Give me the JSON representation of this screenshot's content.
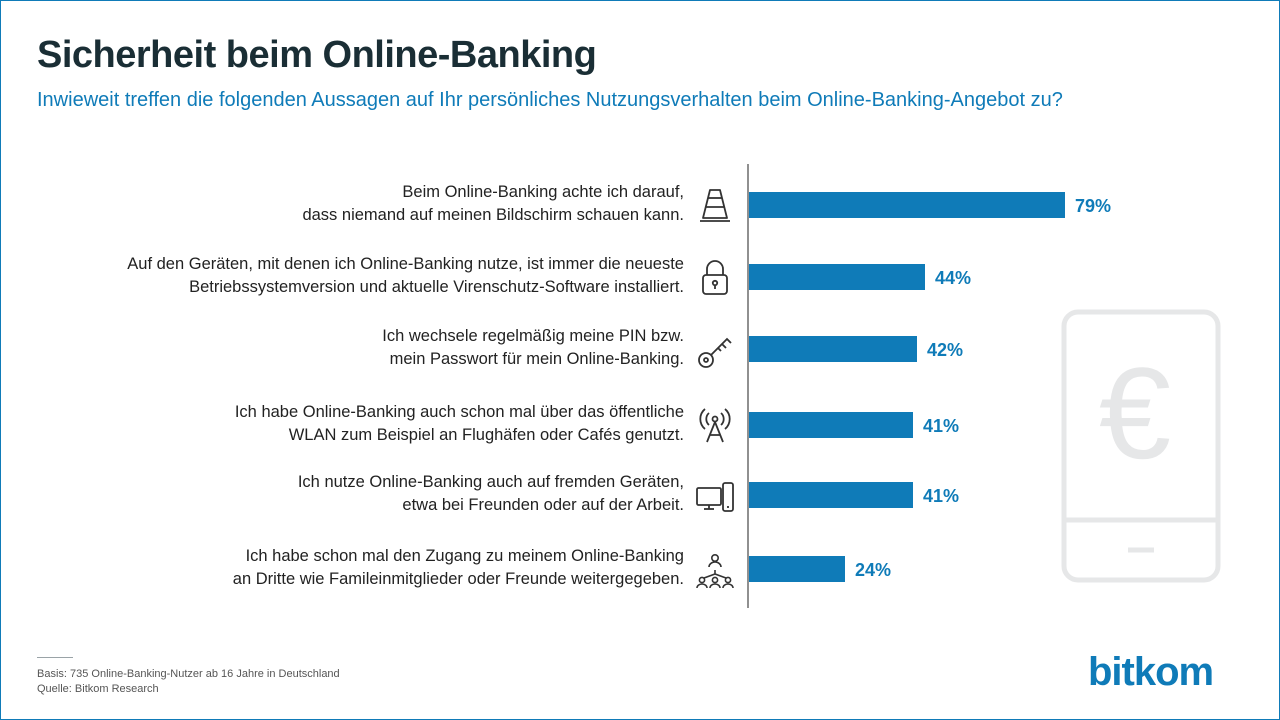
{
  "title": "Sicherheit beim Online-Banking",
  "subtitle": "Inwieweit treffen die folgenden Aussagen auf Ihr persönliches Nutzungsverhalten beim Online-Banking-Angebot zu?",
  "colors": {
    "accent": "#0f7bb8",
    "title": "#1a2e35",
    "watermark": "#e6e7e8"
  },
  "rows": [
    {
      "line1": "Beim Online-Banking achte ich darauf,",
      "line2": "dass niemand auf meinen Bildschirm schauen kann.",
      "icon": "traffic-cone-icon"
    },
    {
      "line1": "Auf den Geräten, mit denen ich Online-Banking nutze, ist immer die neueste",
      "line2": "Betriebssystemversion und aktuelle Virenschutz-Software installiert.",
      "icon": "padlock-icon"
    },
    {
      "line1": "Ich wechsele regelmäßig meine PIN bzw.",
      "line2": "mein Passwort für mein Online-Banking.",
      "icon": "key-icon"
    },
    {
      "line1": "Ich habe Online-Banking auch schon mal über das öffentliche",
      "line2": "WLAN zum Beispiel an Flughäfen oder Cafés genutzt.",
      "icon": "antenna-icon"
    },
    {
      "line1": "Ich nutze Online-Banking auch auf fremden Geräten,",
      "line2": "etwa bei Freunden oder auf der Arbeit.",
      "icon": "devices-icon"
    },
    {
      "line1": "Ich habe schon mal den Zugang zu meinem Online-Banking",
      "line2": "an Dritte wie Famileinmitglieder oder Freunde weitergegeben.",
      "icon": "people-network-icon"
    }
  ],
  "chart_data": {
    "type": "bar",
    "orientation": "horizontal",
    "categories": [
      "Beim Online-Banking achte ich darauf, dass niemand auf meinen Bildschirm schauen kann.",
      "Auf den Geräten, mit denen ich Online-Banking nutze, ist immer die neueste Betriebssystemversion und aktuelle Virenschutz-Software installiert.",
      "Ich wechsele regelmäßig meine PIN bzw. mein Passwort für mein Online-Banking.",
      "Ich habe Online-Banking auch schon mal über das öffentliche WLAN zum Beispiel an Flughäfen oder Cafés genutzt.",
      "Ich nutze Online-Banking auch auf fremden Geräten, etwa bei Freunden oder auf der Arbeit.",
      "Ich habe schon mal den Zugang zu meinem Online-Banking an Dritte wie Famileinmitglieder oder Freunde weitergegeben."
    ],
    "values": [
      79,
      44,
      42,
      41,
      41,
      24
    ],
    "value_labels": [
      "79%",
      "44%",
      "42%",
      "41%",
      "41%",
      "24%"
    ],
    "unit": "%",
    "grid": false,
    "legend": "none"
  },
  "watermark": {
    "symbol": "€",
    "icon": "smartphone-icon"
  },
  "footer": {
    "basis": "Basis: 735 Online-Banking-Nutzer ab 16 Jahre in Deutschland",
    "source": "Quelle: Bitkom Research"
  },
  "logo": "bitkom"
}
